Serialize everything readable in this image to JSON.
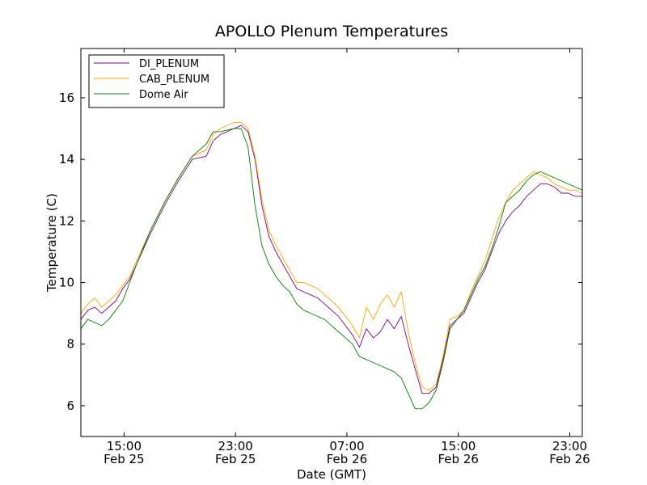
{
  "chart_data": {
    "type": "line",
    "title": "APOLLO Plenum Temperatures",
    "xlabel": "Date (GMT)",
    "ylabel": "Temperature (C)",
    "xlim": [
      0,
      36
    ],
    "ylim": [
      5,
      17.6
    ],
    "grid": false,
    "legend_position": "top-left",
    "y_ticks": [
      {
        "value": 6,
        "label": "6"
      },
      {
        "value": 8,
        "label": "8"
      },
      {
        "value": 10,
        "label": "10"
      },
      {
        "value": 12,
        "label": "12"
      },
      {
        "value": 14,
        "label": "14"
      },
      {
        "value": 16,
        "label": "16"
      }
    ],
    "x_ticks": [
      {
        "value": 3.1,
        "time": "15:00",
        "date": "Feb 25"
      },
      {
        "value": 11.1,
        "time": "23:00",
        "date": "Feb 25"
      },
      {
        "value": 19.1,
        "time": "07:00",
        "date": "Feb 26"
      },
      {
        "value": 27.1,
        "time": "15:00",
        "date": "Feb 26"
      },
      {
        "value": 35.1,
        "time": "23:00",
        "date": "Feb 26"
      }
    ],
    "series": [
      {
        "name": "DI_PLENUM",
        "color": "#800080",
        "x": [
          0,
          0.5,
          1.0,
          1.5,
          2.0,
          2.5,
          3.0,
          3.5,
          4.0,
          5.0,
          6.0,
          7.0,
          8.0,
          9.0,
          9.5,
          10.0,
          11.0,
          11.5,
          12.0,
          12.5,
          13.0,
          13.5,
          14.0,
          14.5,
          15.0,
          15.5,
          16.0,
          16.5,
          17.0,
          17.5,
          18.0,
          18.5,
          19.0,
          19.5,
          20.0,
          20.5,
          21.0,
          21.5,
          22.0,
          22.5,
          23.0,
          23.5,
          24.0,
          24.5,
          25.0,
          25.5,
          26.0,
          26.5,
          27.0,
          27.5,
          28.0,
          28.5,
          29.0,
          29.5,
          30.0,
          30.5,
          31.0,
          31.5,
          32.0,
          32.5,
          33.0,
          33.5,
          34.0,
          34.5,
          35.0,
          35.5,
          36.0
        ],
        "values": [
          8.8,
          9.1,
          9.2,
          9.0,
          9.2,
          9.4,
          9.8,
          10.1,
          10.6,
          11.6,
          12.5,
          13.3,
          14.0,
          14.1,
          14.6,
          14.8,
          15.0,
          15.1,
          14.9,
          14.0,
          12.5,
          11.5,
          11.0,
          10.6,
          10.2,
          9.8,
          9.7,
          9.6,
          9.5,
          9.3,
          9.1,
          8.9,
          8.6,
          8.3,
          7.9,
          8.5,
          8.2,
          8.4,
          8.8,
          8.5,
          8.9,
          8.0,
          7.2,
          6.4,
          6.4,
          6.6,
          7.5,
          8.6,
          8.8,
          9.0,
          9.5,
          10.0,
          10.4,
          11.0,
          11.6,
          12.0,
          12.3,
          12.5,
          12.8,
          13.0,
          13.2,
          13.2,
          13.1,
          12.9,
          12.9,
          12.8,
          12.8
        ]
      },
      {
        "name": "CAB_PLENUM",
        "color": "#ffa500",
        "x": [
          0,
          0.5,
          1.0,
          1.5,
          2.0,
          2.5,
          3.0,
          3.5,
          4.0,
          5.0,
          6.0,
          7.0,
          8.0,
          9.0,
          9.5,
          10.0,
          11.0,
          11.5,
          12.0,
          12.5,
          13.0,
          13.5,
          14.0,
          14.5,
          15.0,
          15.5,
          16.0,
          16.5,
          17.0,
          17.5,
          18.0,
          18.5,
          19.0,
          19.5,
          20.0,
          20.5,
          21.0,
          21.5,
          22.0,
          22.5,
          23.0,
          23.5,
          24.0,
          24.5,
          25.0,
          25.5,
          26.0,
          26.5,
          27.0,
          27.5,
          28.0,
          28.5,
          29.0,
          29.5,
          30.0,
          30.5,
          31.0,
          31.5,
          32.0,
          32.5,
          33.0,
          33.5,
          34.0,
          34.5,
          35.0,
          35.5,
          36.0
        ],
        "values": [
          9.0,
          9.3,
          9.5,
          9.2,
          9.4,
          9.6,
          9.9,
          10.2,
          10.7,
          11.7,
          12.6,
          13.4,
          14.1,
          14.3,
          14.8,
          15.0,
          15.2,
          15.2,
          15.0,
          14.1,
          12.7,
          11.7,
          11.2,
          10.8,
          10.4,
          10.0,
          10.0,
          9.9,
          9.8,
          9.6,
          9.4,
          9.2,
          8.9,
          8.6,
          8.2,
          9.2,
          8.8,
          9.3,
          9.6,
          9.2,
          9.7,
          8.4,
          7.4,
          6.6,
          6.5,
          6.7,
          7.6,
          8.8,
          8.9,
          9.1,
          9.7,
          10.2,
          10.7,
          11.4,
          12.1,
          12.6,
          13.0,
          13.2,
          13.4,
          13.6,
          13.5,
          13.4,
          13.2,
          13.1,
          13.0,
          13.0,
          12.9
        ]
      },
      {
        "name": "Dome Air",
        "color": "#008000",
        "x": [
          0,
          0.5,
          1.0,
          1.5,
          2.0,
          2.5,
          3.0,
          3.5,
          4.0,
          5.0,
          6.0,
          7.0,
          8.0,
          9.0,
          9.5,
          10.0,
          11.0,
          11.5,
          12.0,
          12.5,
          13.0,
          13.5,
          14.0,
          14.5,
          15.0,
          15.5,
          16.0,
          16.5,
          17.0,
          17.5,
          18.0,
          18.5,
          19.0,
          19.5,
          20.0,
          20.5,
          21.0,
          21.5,
          22.0,
          22.5,
          23.0,
          23.5,
          24.0,
          24.5,
          25.0,
          25.5,
          26.0,
          26.5,
          27.0,
          27.5,
          28.0,
          28.5,
          29.0,
          29.5,
          30.0,
          30.5,
          31.0,
          31.5,
          32.0,
          32.5,
          33.0,
          33.5,
          34.0,
          34.5,
          35.0,
          35.5,
          36.0
        ],
        "values": [
          8.5,
          8.8,
          8.7,
          8.6,
          8.8,
          9.1,
          9.4,
          10.0,
          10.6,
          11.7,
          12.6,
          13.4,
          14.1,
          14.5,
          14.9,
          14.9,
          15.0,
          15.0,
          14.4,
          12.5,
          11.2,
          10.6,
          10.2,
          9.9,
          9.7,
          9.3,
          9.1,
          9.0,
          8.9,
          8.8,
          8.6,
          8.4,
          8.2,
          8.0,
          7.6,
          7.5,
          7.4,
          7.3,
          7.2,
          7.1,
          6.9,
          6.4,
          5.9,
          5.9,
          6.1,
          6.5,
          7.4,
          8.5,
          8.8,
          9.1,
          9.6,
          10.1,
          10.5,
          11.1,
          11.8,
          12.6,
          12.8,
          13.0,
          13.3,
          13.5,
          13.6,
          13.5,
          13.4,
          13.3,
          13.2,
          13.1,
          13.0
        ]
      }
    ]
  }
}
